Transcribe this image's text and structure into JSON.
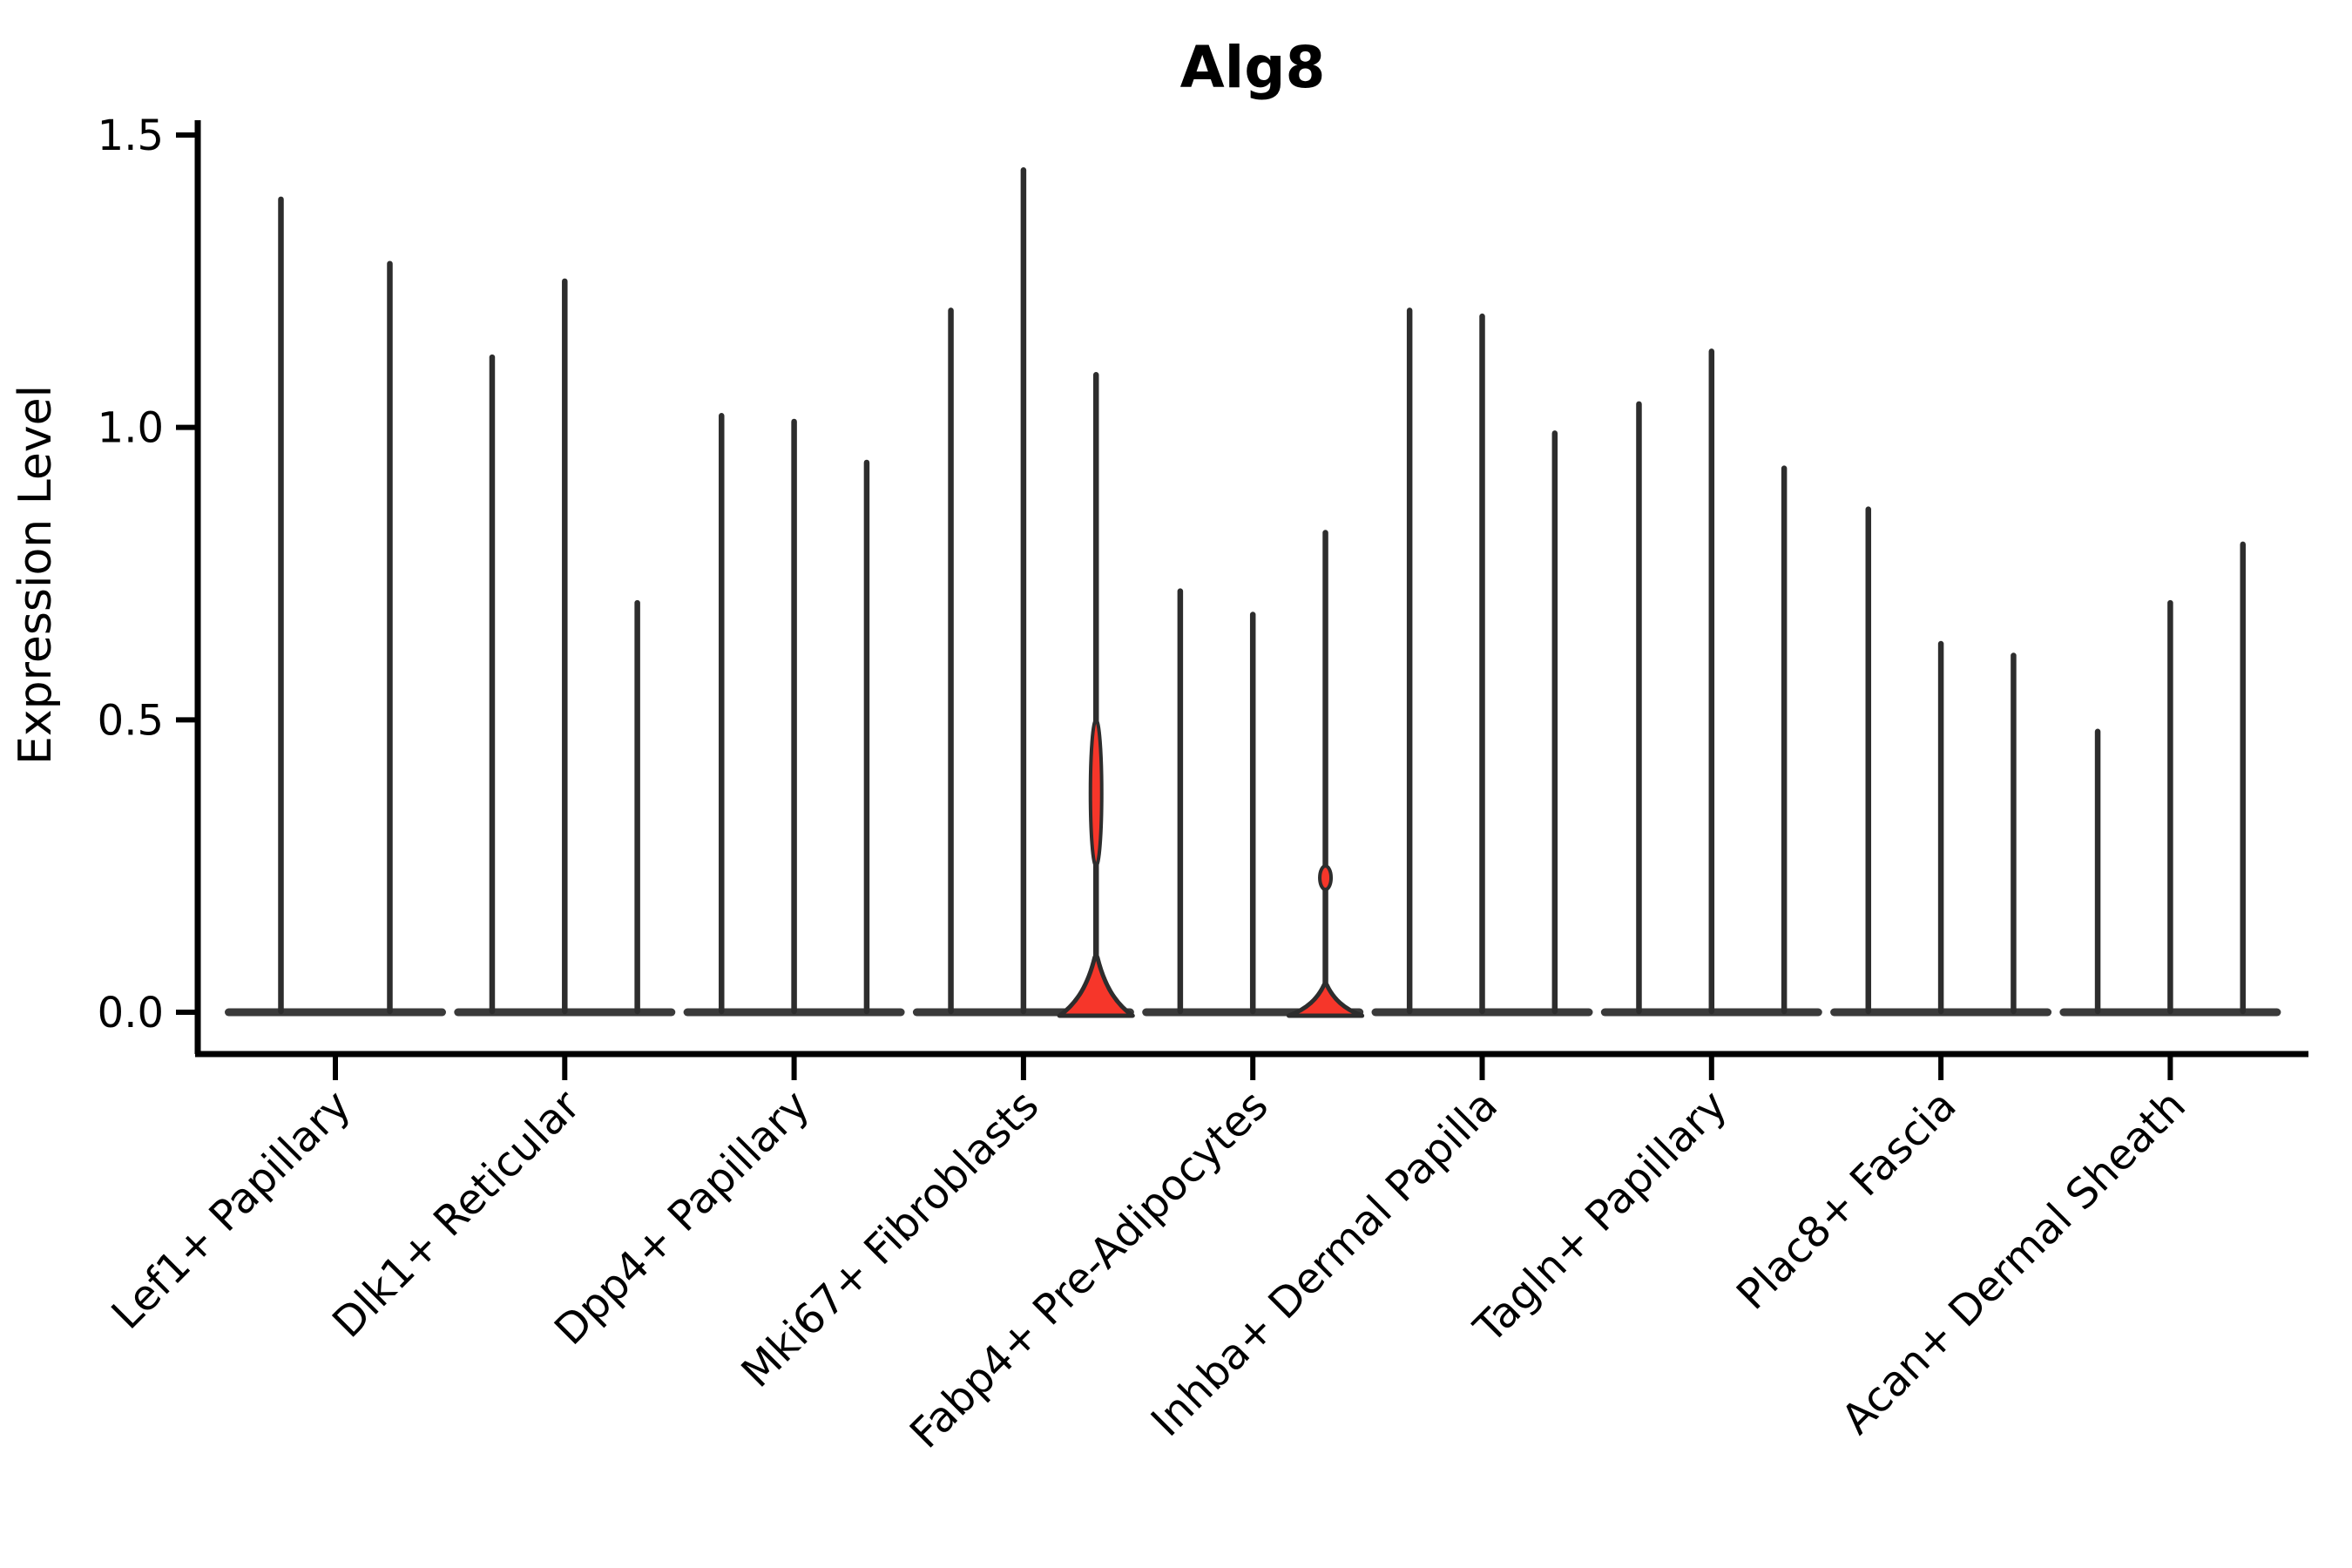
{
  "figure": {
    "title": "Alg8",
    "background": "#ffffff"
  },
  "chart_data": {
    "type": "violin",
    "title": "Alg8",
    "ylabel": "Expression Level",
    "xlabel": "",
    "ylim": [
      0.0,
      1.5
    ],
    "yticks": [
      0.0,
      0.5,
      1.0,
      1.5
    ],
    "ytick_labels": [
      "0.0",
      "0.5",
      "1.0",
      "1.5"
    ],
    "grid": false,
    "legend": "none",
    "x_label_rotation_deg": 45,
    "categories": [
      "Lef1+ Papillary",
      "Dlk1+ Reticular",
      "Dpp4+ Papillary",
      "Mki67+ Fibroblasts",
      "Fabp4+ Pre-Adipocytes",
      "Inhba+ Dermal Papilla",
      "Tagln+ Papillary",
      "Plac8+ Fascia",
      "Acan+ Dermal Sheath"
    ],
    "groups": [
      {
        "category": "Lef1+ Papillary",
        "violins": [
          {
            "max": 1.39
          },
          {
            "max": 1.28
          }
        ]
      },
      {
        "category": "Dlk1+ Reticular",
        "violins": [
          {
            "max": 1.12
          },
          {
            "max": 1.25
          },
          {
            "max": 0.7
          }
        ]
      },
      {
        "category": "Dpp4+ Papillary",
        "violins": [
          {
            "max": 1.02
          },
          {
            "max": 1.01
          },
          {
            "max": 0.94
          }
        ]
      },
      {
        "category": "Mki67+ Fibroblasts",
        "violins": [
          {
            "max": 1.2
          },
          {
            "max": 1.44
          },
          {
            "max": 1.09,
            "highlighted": true,
            "bulge_top": 0.1,
            "core": [
              0.25,
              0.5
            ]
          }
        ]
      },
      {
        "category": "Fabp4+ Pre-Adipocytes",
        "violins": [
          {
            "max": 0.72
          },
          {
            "max": 0.68
          },
          {
            "max": 0.82,
            "highlighted": true,
            "bulge_top": 0.053,
            "core": [
              0.21,
              0.25
            ]
          }
        ]
      },
      {
        "category": "Inhba+ Dermal Papilla",
        "violins": [
          {
            "max": 1.2
          },
          {
            "max": 1.19
          },
          {
            "max": 0.99
          }
        ]
      },
      {
        "category": "Tagln+ Papillary",
        "violins": [
          {
            "max": 1.04
          },
          {
            "max": 1.13
          },
          {
            "max": 0.93
          }
        ]
      },
      {
        "category": "Plac8+ Fascia",
        "violins": [
          {
            "max": 0.86
          },
          {
            "max": 0.63
          },
          {
            "max": 0.61
          }
        ]
      },
      {
        "category": "Acan+ Dermal Sheath",
        "violins": [
          {
            "max": 0.48
          },
          {
            "max": 0.7
          },
          {
            "max": 0.8
          }
        ]
      }
    ],
    "colors": {
      "violin_line": "#2d2d2d",
      "violin_base": "#3a3a3a",
      "highlight_fill": "#f6362a",
      "axis": "#000000",
      "text": "#000000"
    }
  }
}
